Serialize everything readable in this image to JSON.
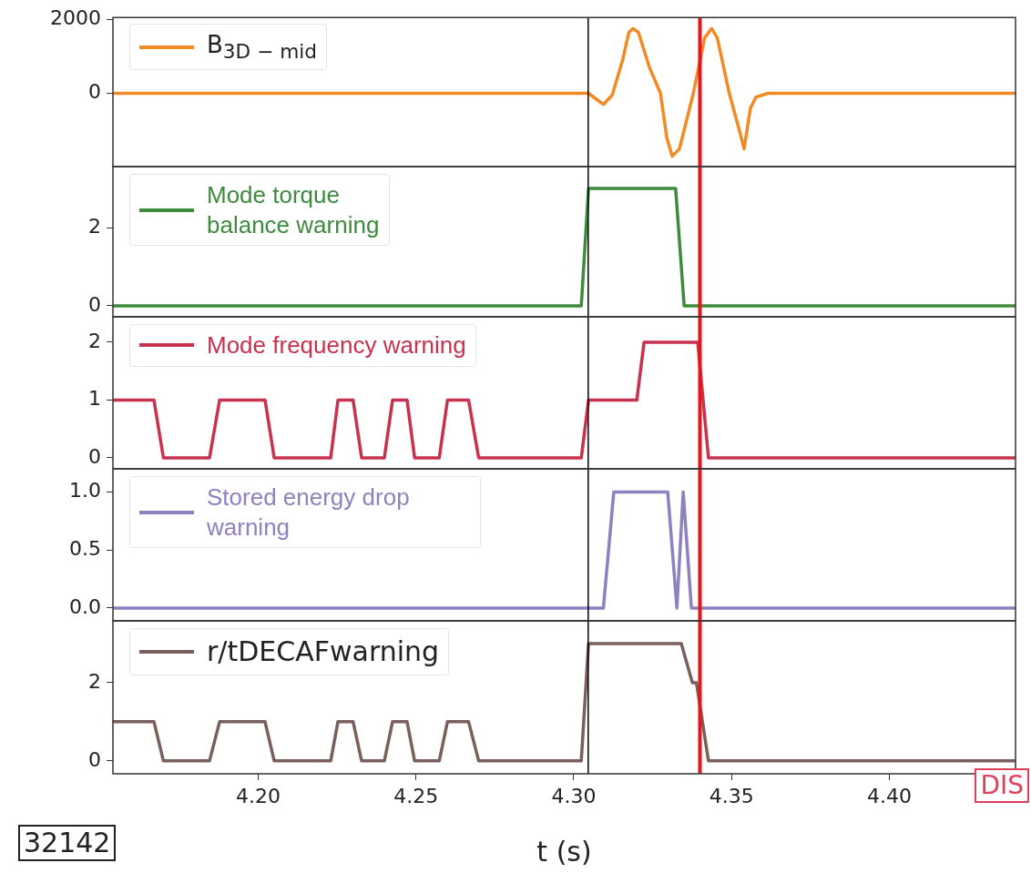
{
  "chart_data": [
    {
      "type": "line",
      "legend": "top left",
      "tick_labels": "y",
      "xlim": [
        4.154,
        4.44
      ],
      "ylim": [
        -1980,
        2050
      ],
      "yticks": [
        0,
        2000
      ],
      "ref_lines": [
        {
          "axis": "x",
          "value": 4.3046,
          "color": "#000000"
        },
        {
          "axis": "x",
          "value": 4.34,
          "color": "#e8141c"
        }
      ],
      "series": [
        {
          "name": "B$_{3D − mid}$",
          "color": "#f28a24",
          "x": [
            4.154,
            4.3047,
            4.3094,
            4.3122,
            4.3155,
            4.3175,
            4.3188,
            4.3205,
            4.324,
            4.3275,
            4.3295,
            4.3312,
            4.3335,
            4.3379,
            4.3415,
            4.3437,
            4.3455,
            4.3493,
            4.3525,
            4.354,
            4.356,
            4.3578,
            4.3616,
            4.44
          ],
          "values": [
            0,
            0,
            -300,
            -50,
            900,
            1650,
            1750,
            1650,
            700,
            0,
            -1200,
            -1700,
            -1500,
            0,
            1500,
            1750,
            1500,
            0,
            -1000,
            -1500,
            -400,
            -100,
            0,
            0
          ]
        }
      ]
    },
    {
      "type": "line",
      "legend": "top left",
      "tick_labels": "y",
      "xlim": [
        4.154,
        4.44
      ],
      "ylim": [
        -0.28,
        3.56
      ],
      "yticks": [
        0,
        2
      ],
      "ref_lines": [
        {
          "axis": "x",
          "value": 4.3046,
          "color": "#000000"
        },
        {
          "axis": "x",
          "value": 4.34,
          "color": "#e8141c"
        }
      ],
      "series": [
        {
          "name": "Mode torque balance warning",
          "color": "#3d8b3d",
          "x": [
            4.154,
            4.3024,
            4.3047,
            4.3323,
            4.335,
            4.44
          ],
          "values": [
            0,
            0,
            3,
            3,
            0,
            0
          ]
        }
      ]
    },
    {
      "type": "line",
      "legend": "top left",
      "tick_labels": "y",
      "xlim": [
        4.154,
        4.44
      ],
      "ylim": [
        -0.19,
        2.44
      ],
      "yticks": [
        0,
        1,
        2
      ],
      "ref_lines": [
        {
          "axis": "x",
          "value": 4.3046,
          "color": "#000000"
        },
        {
          "axis": "x",
          "value": 4.34,
          "color": "#e8141c"
        }
      ],
      "series": [
        {
          "name": "Mode frequency warning",
          "color": "#c8324f",
          "x": [
            4.154,
            4.167,
            4.17,
            4.1846,
            4.1878,
            4.2022,
            4.2051,
            4.223,
            4.2253,
            4.2301,
            4.2328,
            4.24,
            4.2426,
            4.2472,
            4.2496,
            4.2574,
            4.26,
            4.2667,
            4.2699,
            4.3024,
            4.3047,
            4.32,
            4.3223,
            4.3393,
            4.3427,
            4.44
          ],
          "values": [
            1,
            1,
            0,
            0,
            1,
            1,
            0,
            0,
            1,
            1,
            0,
            0,
            1,
            1,
            0,
            0,
            1,
            1,
            0,
            0,
            1,
            1,
            2,
            2,
            0,
            0
          ]
        }
      ]
    },
    {
      "type": "line",
      "legend": "top left",
      "tick_labels": "y",
      "xlim": [
        4.154,
        4.44
      ],
      "ylim": [
        -0.11,
        1.2
      ],
      "yticks": [
        {
          "value": 0,
          "label": "0.0"
        },
        {
          "value": 0.5,
          "label": "0.5"
        },
        {
          "value": 1,
          "label": "1.0"
        }
      ],
      "ref_lines": [
        {
          "axis": "x",
          "value": 4.3046,
          "color": "#000000"
        },
        {
          "axis": "x",
          "value": 4.34,
          "color": "#e8141c"
        }
      ],
      "series": [
        {
          "name": "Stored energy drop warning",
          "color": "#8f80c0",
          "x": [
            4.154,
            4.3094,
            4.3127,
            4.3298,
            4.3327,
            4.3347,
            4.3373,
            4.44
          ],
          "values": [
            0,
            0,
            1,
            1,
            0,
            1,
            0,
            0
          ]
        }
      ]
    },
    {
      "type": "line",
      "legend": "top left",
      "xlabel": "t (s)",
      "xlim": [
        4.154,
        4.44
      ],
      "xticks": [
        {
          "value": 4.2,
          "label": "4.20"
        },
        {
          "value": 4.25,
          "label": "4.25"
        },
        {
          "value": 4.3,
          "label": "4.30"
        },
        {
          "value": 4.35,
          "label": "4.35"
        },
        {
          "value": 4.4,
          "label": "4.40"
        }
      ],
      "ylim": [
        -0.33,
        3.58
      ],
      "yticks": [
        0,
        2
      ],
      "ref_lines": [
        {
          "axis": "x",
          "value": 4.3046,
          "color": "#000000"
        },
        {
          "axis": "x",
          "value": 4.34,
          "color": "#e8141c"
        }
      ],
      "annotations": [
        "32142",
        "DIS"
      ],
      "series": [
        {
          "name": "r/tDECAFwarning",
          "color": "#7a5f5c",
          "x": [
            4.154,
            4.167,
            4.17,
            4.1846,
            4.1878,
            4.2022,
            4.2051,
            4.223,
            4.2253,
            4.2301,
            4.2328,
            4.24,
            4.2426,
            4.2472,
            4.2496,
            4.2574,
            4.26,
            4.2667,
            4.2699,
            4.3024,
            4.3047,
            4.3341,
            4.3376,
            4.3389,
            4.3427,
            4.44
          ],
          "values": [
            1,
            1,
            0,
            0,
            1,
            1,
            0,
            0,
            1,
            1,
            0,
            0,
            1,
            1,
            0,
            0,
            1,
            1,
            0,
            0,
            3,
            3,
            2,
            2,
            0,
            0
          ]
        }
      ]
    }
  ]
}
